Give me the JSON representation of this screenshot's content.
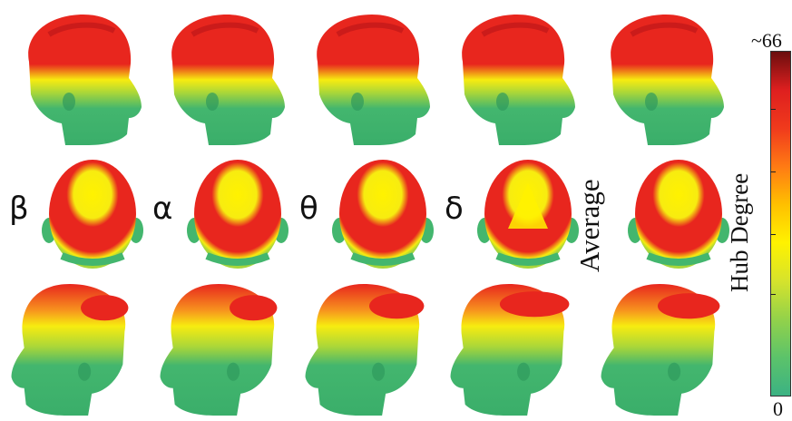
{
  "rows": [
    "left-lateral",
    "top",
    "right-lateral"
  ],
  "columns": [
    {
      "id": "beta",
      "label": "β"
    },
    {
      "id": "alpha",
      "label": "α"
    },
    {
      "id": "theta",
      "label": "θ"
    },
    {
      "id": "delta",
      "label": "δ"
    },
    {
      "id": "average",
      "label": "Average"
    }
  ],
  "colorbar": {
    "title": "Hub Degree",
    "max_label": "~66",
    "min_label": "0",
    "min": 0,
    "max": 66,
    "colors": [
      "#3bb283",
      "#5cc36a",
      "#93d24a",
      "#d6e32c",
      "#fff200",
      "#ffc000",
      "#ff7a14",
      "#f03a1c",
      "#de1f1f",
      "#6b0e0e"
    ]
  },
  "palette": {
    "green": "#43b66e",
    "yellow_green": "#a8d63a",
    "yellow": "#f7ec10",
    "orange": "#f7931e",
    "red": "#e8261e",
    "dark_red": "#b81418"
  }
}
